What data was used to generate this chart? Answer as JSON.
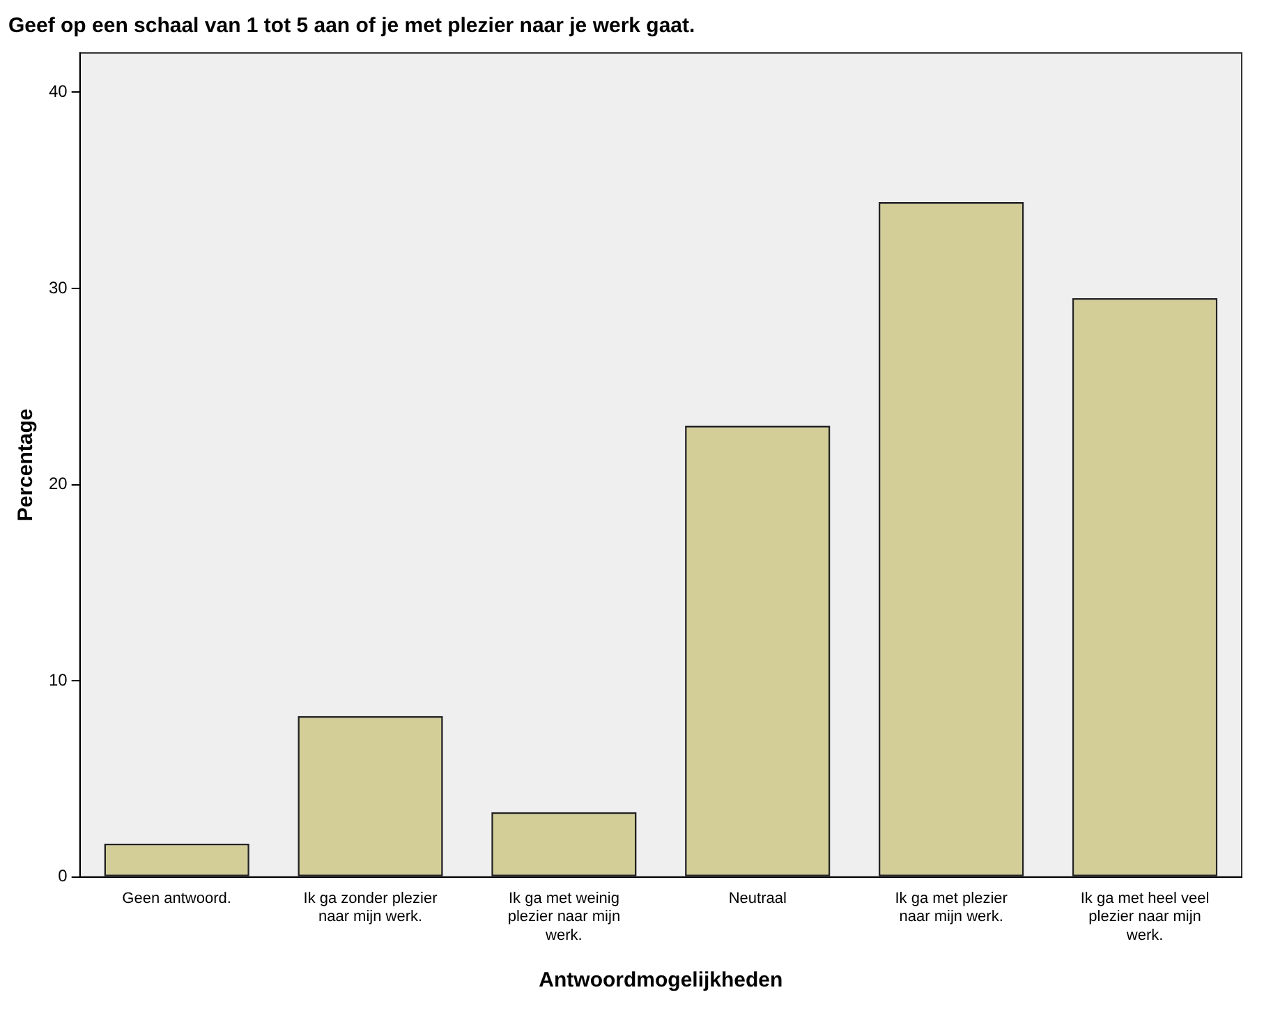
{
  "chart_data": {
    "type": "bar",
    "title": "Geef op een schaal van 1 tot 5 aan of je met plezier naar je werk gaat.",
    "xlabel": "Antwoordmogelijkheden",
    "ylabel": "Percentage",
    "categories": [
      "Geen antwoord.",
      "Ik ga zonder plezier naar mijn werk.",
      "Ik ga met weinig plezier naar mijn werk.",
      "Neutraal",
      "Ik ga met plezier naar mijn werk.",
      "Ik ga met heel veel plezier naar mijn werk."
    ],
    "values": [
      1.7,
      8.2,
      3.3,
      23.0,
      34.4,
      29.5
    ],
    "color": "#d3ce97",
    "ylim": [
      0,
      42
    ],
    "yticks": [
      0,
      10,
      20,
      30,
      40
    ],
    "grid": false,
    "legend": false
  }
}
